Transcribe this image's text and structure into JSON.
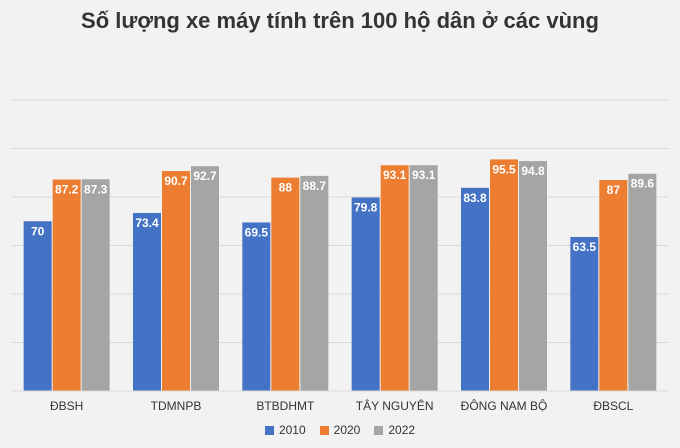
{
  "chart_data": {
    "type": "bar",
    "title": "Số lượng xe máy tính trên 100 hộ dân ở các vùng",
    "xlabel": "",
    "ylabel": "",
    "categories": [
      "ĐBSH",
      "TDMNPB",
      "BTBDHMT",
      "TÂY NGUYÊN",
      "ĐÔNG NAM BỘ",
      "ĐBSCL"
    ],
    "series": [
      {
        "name": "2010",
        "color": "#4472c4",
        "values": [
          70,
          73.4,
          69.5,
          79.8,
          83.8,
          63.5
        ]
      },
      {
        "name": "2020",
        "color": "#ed7d31",
        "values": [
          87.2,
          90.7,
          88,
          93.1,
          95.5,
          87
        ]
      },
      {
        "name": "2022",
        "color": "#a5a5a5",
        "values": [
          87.3,
          92.7,
          88.7,
          93.1,
          94.8,
          89.6
        ]
      }
    ],
    "ylim": [
      0,
      120
    ],
    "grid": true,
    "legend_position": "bottom"
  }
}
